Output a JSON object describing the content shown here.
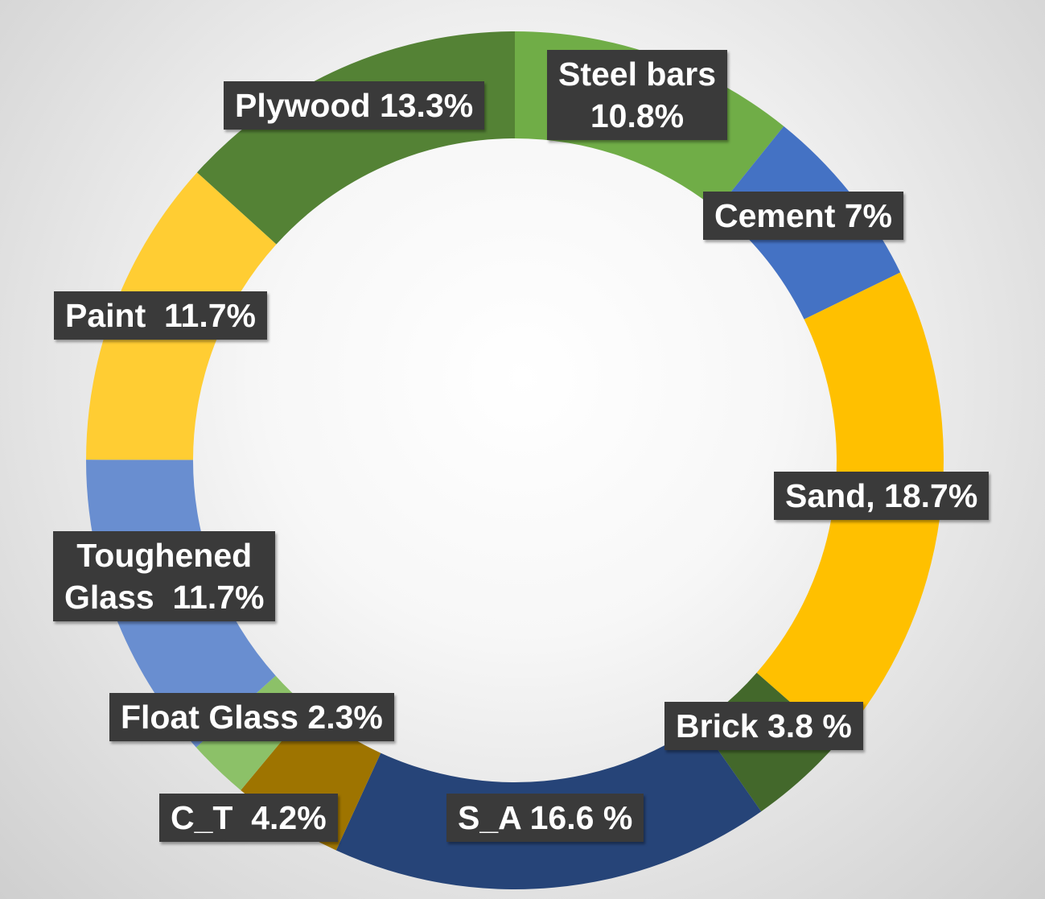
{
  "chart_data": {
    "type": "pie",
    "style": "donut",
    "slices": [
      {
        "label_lines": [
          "Steel bars",
          "10.8%"
        ],
        "value": 10.8,
        "color": "#70AD47"
      },
      {
        "label_lines": [
          "Cement 7%"
        ],
        "value": 7.0,
        "color": "#4472C4"
      },
      {
        "label_lines": [
          "Sand, 18.7%"
        ],
        "value": 18.7,
        "color": "#FFC000"
      },
      {
        "label_lines": [
          "Brick 3.8 %"
        ],
        "value": 3.8,
        "color": "#43682B"
      },
      {
        "label_lines": [
          "S_A 16.6 %"
        ],
        "value": 16.6,
        "color": "#264478"
      },
      {
        "label_lines": [
          "C_T  4.2%"
        ],
        "value": 4.2,
        "color": "#9E7400"
      },
      {
        "label_lines": [
          "Float Glass 2.3%"
        ],
        "value": 2.3,
        "color": "#8CC168"
      },
      {
        "label_lines": [
          "Toughened",
          "Glass  11.7%"
        ],
        "value": 11.7,
        "color": "#698ED0"
      },
      {
        "label_lines": [
          "Paint  11.7%"
        ],
        "value": 11.7,
        "color": "#FFCD33"
      },
      {
        "label_lines": [
          "Plywood 13.3%"
        ],
        "value": 13.3,
        "color": "#548235"
      }
    ],
    "legend": "none",
    "data_labels": "dark boxes"
  }
}
